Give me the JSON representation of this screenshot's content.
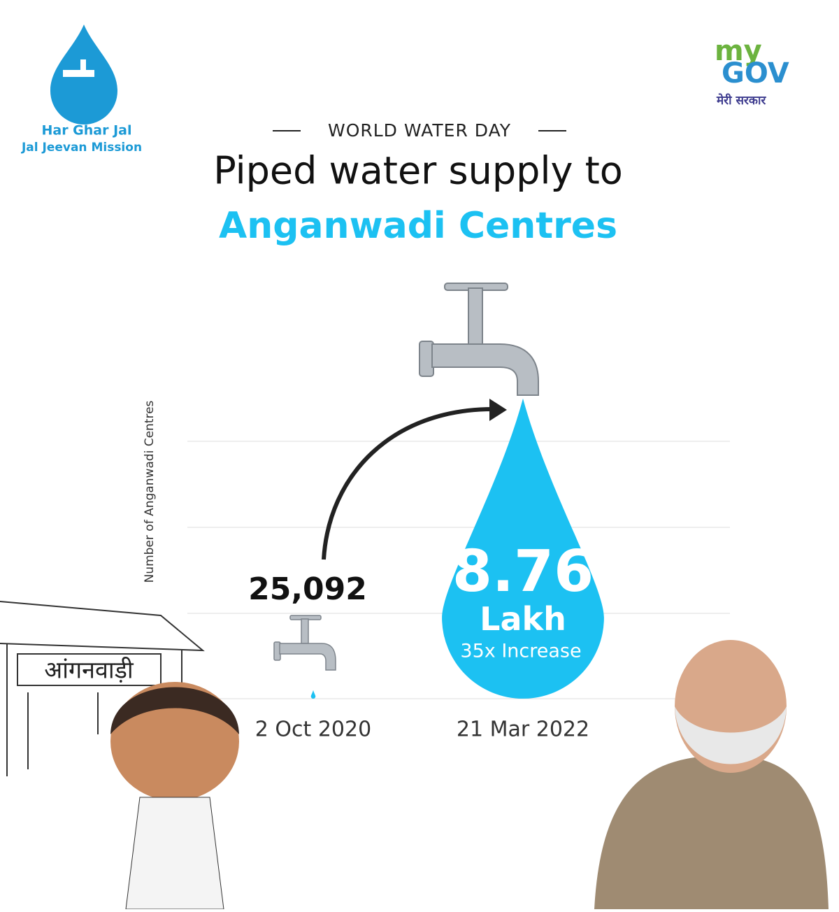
{
  "logo": {
    "line1": "Har Ghar Jal",
    "line2": "Jal Jeevan Mission"
  },
  "mygov": {
    "my": "my",
    "gov": "GOV",
    "tagline": "मेरी सरकार"
  },
  "kicker": "WORLD WATER DAY",
  "title": "Piped water supply to",
  "title_highlight": "Anganwadi Centres",
  "sign": "आंगनवाड़ी",
  "chart_data": {
    "type": "drop",
    "y_label": "Number of Anganwadi Centres",
    "categories": [
      "2 Oct 2020",
      "21 Mar 2022"
    ],
    "values": [
      25092,
      876000
    ],
    "value_labels": [
      "25,092",
      "8.76 Lakh"
    ],
    "annotation": "35x Increase",
    "color": "#1cc1f2",
    "ylim": [
      0,
      900000
    ]
  }
}
